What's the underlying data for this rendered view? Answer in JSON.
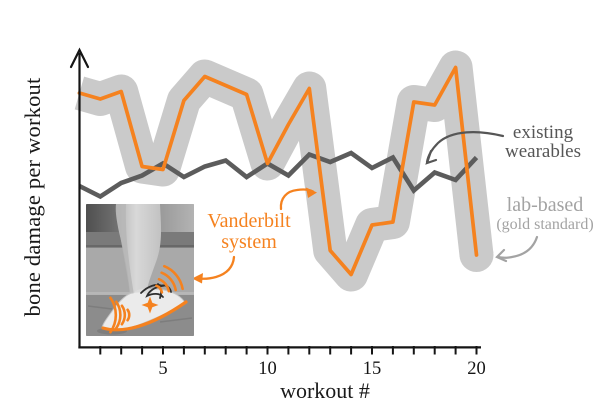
{
  "figure": {
    "xlabel": "workout #",
    "ylabel": "bone damage per workout"
  },
  "chart_data": {
    "type": "line",
    "title": "",
    "xlabel": "workout #",
    "ylabel": "bone damage per workout",
    "x": [
      1,
      2,
      3,
      4,
      5,
      6,
      7,
      8,
      9,
      10,
      11,
      12,
      13,
      14,
      15,
      16,
      17,
      18,
      19,
      20
    ],
    "xlim": [
      1,
      20
    ],
    "x_ticks": [
      5,
      10,
      15,
      20
    ],
    "y_axis_ticks": "none (unitless axis, arrow pointing up)",
    "ylim_units": [
      0,
      100
    ],
    "grid": false,
    "legend_position": "annotated arrows instead of legend box",
    "series": [
      {
        "name": "Vanderbilt system",
        "color": "#f5821f",
        "style": "solid line",
        "values": [
          85,
          83,
          85.5,
          60.5,
          59.5,
          82.5,
          90.5,
          87.5,
          84.5,
          61.5,
          74.5,
          86.5,
          32.5,
          24.5,
          41,
          42,
          82,
          81,
          93.5,
          31
        ]
      },
      {
        "name": "existing wearables",
        "color": "#5c5c5c",
        "style": "solid zigzag line",
        "values": [
          54,
          50.5,
          55,
          57.5,
          61.5,
          57,
          60.5,
          62.5,
          57,
          61.5,
          57.5,
          64.5,
          62,
          65,
          60,
          63.5,
          52.5,
          58.5,
          56,
          63.5
        ]
      },
      {
        "name": "lab-based (gold standard)",
        "color": "#cacaca",
        "style": "thick band tracking the Vanderbilt-system line",
        "band_halfwidth_units": 5.7,
        "values": [
          85,
          83,
          85.5,
          60.5,
          59.5,
          82.5,
          90.5,
          87.5,
          84.5,
          61.5,
          74.5,
          86.5,
          32.5,
          24.5,
          41,
          42,
          82,
          81,
          93.5,
          31
        ]
      }
    ]
  },
  "annotations": {
    "existing_wearables": {
      "line1": "existing",
      "line2": "wearables",
      "color": "#565656"
    },
    "lab_based": {
      "line1": "lab-based",
      "line2": "(gold standard)",
      "color": "#a3a3a3"
    },
    "vanderbilt": {
      "line1": "Vanderbilt",
      "line2": "system",
      "color": "#f5821f"
    }
  }
}
